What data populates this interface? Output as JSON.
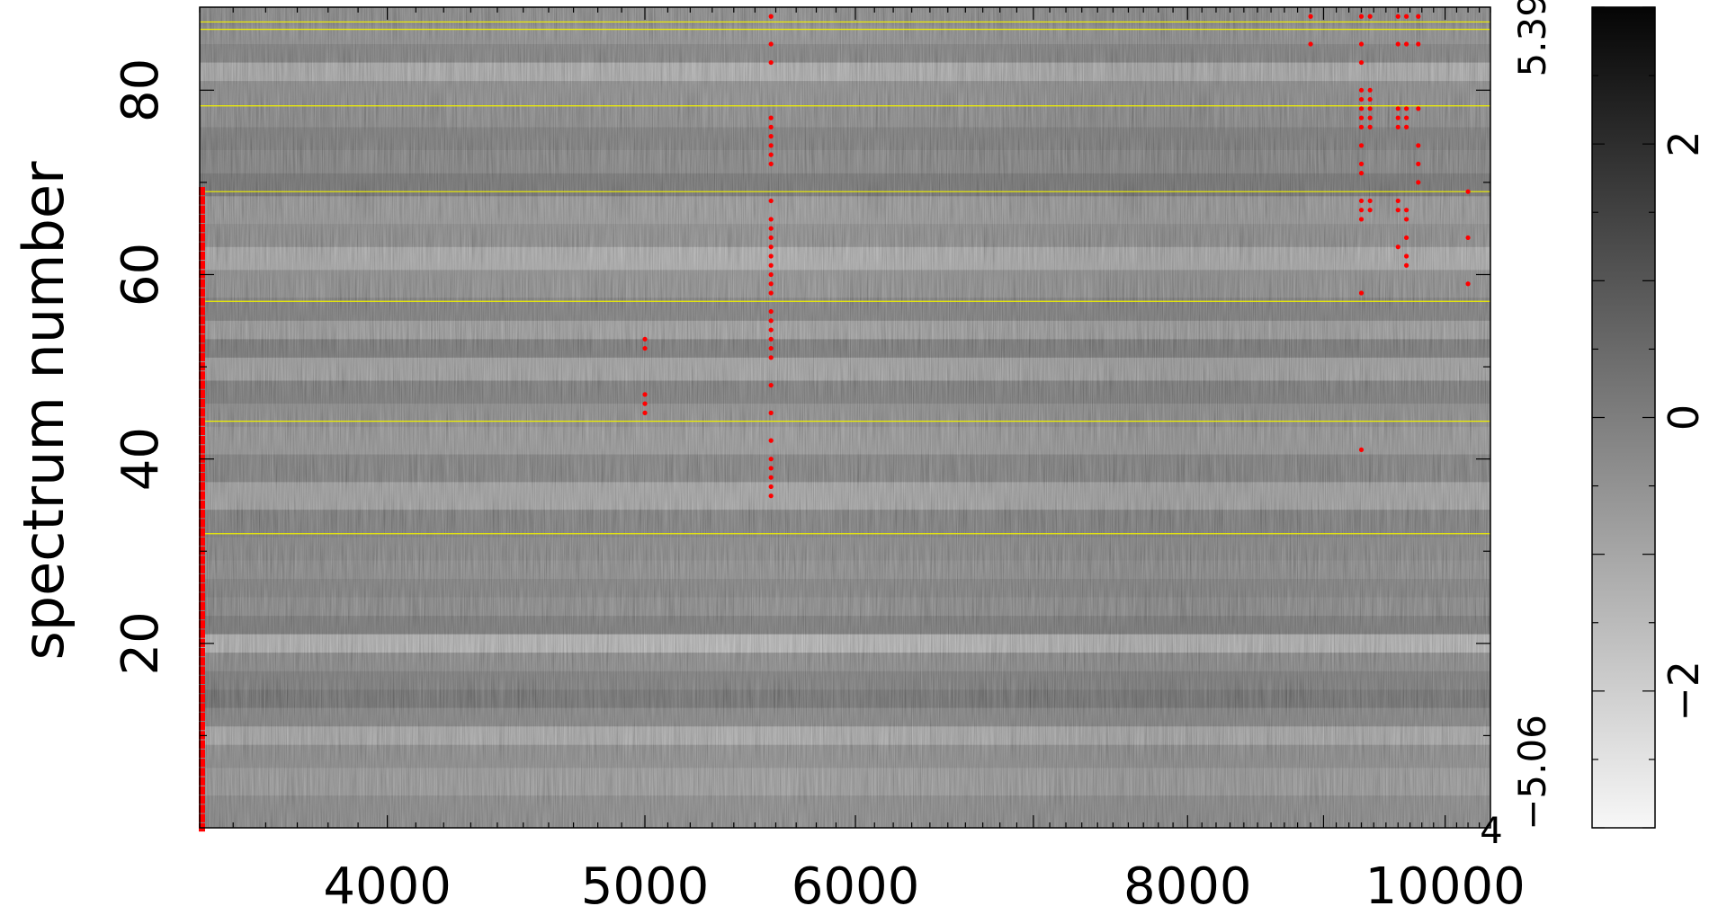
{
  "chart_data": {
    "type": "heatmap",
    "title": "",
    "xlabel": "",
    "ylabel": "spectrum number",
    "x_scale": "log",
    "xlim": [
      3400,
      10400
    ],
    "ylim": [
      0,
      89
    ],
    "x_tick_labels": [
      {
        "value": 4000,
        "label": "4000"
      },
      {
        "value": 5000,
        "label": "5000"
      },
      {
        "value": 6000,
        "label": "6000"
      },
      {
        "value": 8000,
        "label": "8000"
      },
      {
        "value": 10000,
        "label": "10000"
      }
    ],
    "x_corner_label": "4",
    "y_tick_labels": [
      {
        "value": 20,
        "label": "20"
      },
      {
        "value": 40,
        "label": "40"
      },
      {
        "value": 60,
        "label": "60"
      },
      {
        "value": 80,
        "label": "80"
      }
    ],
    "right_labels": [
      {
        "value": 86,
        "label": "5.39"
      },
      {
        "value": 6,
        "label": "−5.06"
      }
    ],
    "colorbar": {
      "colormap": "gray",
      "range": [
        -3,
        3
      ],
      "ticks": [
        {
          "value": 2,
          "label": "2"
        },
        {
          "value": 0,
          "label": "0"
        },
        {
          "value": -2,
          "label": "−2"
        }
      ]
    },
    "separator_lines": [
      31.9,
      44.1,
      57.1,
      69.0,
      78.3,
      86.6,
      87.4
    ],
    "row_pattern": [
      {
        "spectrum": 2,
        "value": 0.3
      },
      {
        "spectrum": 5,
        "value": -0.3
      },
      {
        "spectrum": 8,
        "value": 0.2
      },
      {
        "spectrum": 10,
        "value": -0.8
      },
      {
        "spectrum": 12,
        "value": 0.5
      },
      {
        "spectrum": 14,
        "value": 1.2
      },
      {
        "spectrum": 16,
        "value": 0.8
      },
      {
        "spectrum": 18,
        "value": 0.3
      },
      {
        "spectrum": 20,
        "value": -1.2
      },
      {
        "spectrum": 22,
        "value": 0.9
      },
      {
        "spectrum": 24,
        "value": 0.3
      },
      {
        "spectrum": 26,
        "value": 0.6
      },
      {
        "spectrum": 28,
        "value": 0.2
      },
      {
        "spectrum": 30,
        "value": 0.4
      },
      {
        "spectrum": 33,
        "value": 0.7
      },
      {
        "spectrum": 36,
        "value": -0.6
      },
      {
        "spectrum": 39,
        "value": 0.6
      },
      {
        "spectrum": 42,
        "value": -0.2
      },
      {
        "spectrum": 45,
        "value": 0.2
      },
      {
        "spectrum": 47,
        "value": 0.8
      },
      {
        "spectrum": 50,
        "value": -0.5
      },
      {
        "spectrum": 52,
        "value": 0.9
      },
      {
        "spectrum": 54,
        "value": -0.4
      },
      {
        "spectrum": 56,
        "value": 0.7
      },
      {
        "spectrum": 59,
        "value": 0.1
      },
      {
        "spectrum": 62,
        "value": -0.9
      },
      {
        "spectrum": 64,
        "value": 0.2
      },
      {
        "spectrum": 67,
        "value": -0.2
      },
      {
        "spectrum": 70,
        "value": 1.1
      },
      {
        "spectrum": 72,
        "value": 0.5
      },
      {
        "spectrum": 75,
        "value": 0.8
      },
      {
        "spectrum": 77,
        "value": 0.3
      },
      {
        "spectrum": 80,
        "value": 0.2
      },
      {
        "spectrum": 82,
        "value": -0.9
      },
      {
        "spectrum": 84,
        "value": 0.6
      },
      {
        "spectrum": 86,
        "value": 0.1
      },
      {
        "spectrum": 88,
        "value": 0.3
      }
    ],
    "masked_pixels": [
      {
        "wavelength": 5000,
        "spectra": [
          45,
          46,
          47,
          52,
          53
        ]
      },
      {
        "wavelength": 5577,
        "spectra": [
          36,
          37,
          38,
          39,
          40,
          42,
          45,
          48,
          51,
          52,
          53,
          54,
          55,
          56,
          58,
          59,
          60,
          61,
          62,
          63,
          64,
          65,
          66,
          68,
          72,
          73,
          74,
          75,
          76,
          77,
          83,
          85,
          88
        ]
      },
      {
        "wavelength": 8900,
        "spectra": [
          85,
          88
        ]
      },
      {
        "wavelength": 9300,
        "spectra": [
          41,
          58,
          66,
          67,
          68,
          71,
          72,
          74,
          76,
          77,
          78,
          79,
          80,
          83,
          85,
          88
        ]
      },
      {
        "wavelength": 9370,
        "spectra": [
          67,
          68,
          76,
          77,
          78,
          79,
          80,
          88
        ]
      },
      {
        "wavelength": 9600,
        "spectra": [
          63,
          67,
          68,
          76,
          77,
          78,
          85,
          88
        ]
      },
      {
        "wavelength": 9670,
        "spectra": [
          61,
          62,
          64,
          66,
          67,
          76,
          77,
          78,
          85,
          88
        ]
      },
      {
        "wavelength": 9770,
        "spectra": [
          70,
          72,
          74,
          78,
          85,
          88
        ]
      },
      {
        "wavelength": 10200,
        "spectra": [
          59,
          64,
          69
        ]
      }
    ],
    "masked_edge": {
      "wavelength": 3400,
      "spectra_range": [
        0,
        69
      ]
    }
  }
}
